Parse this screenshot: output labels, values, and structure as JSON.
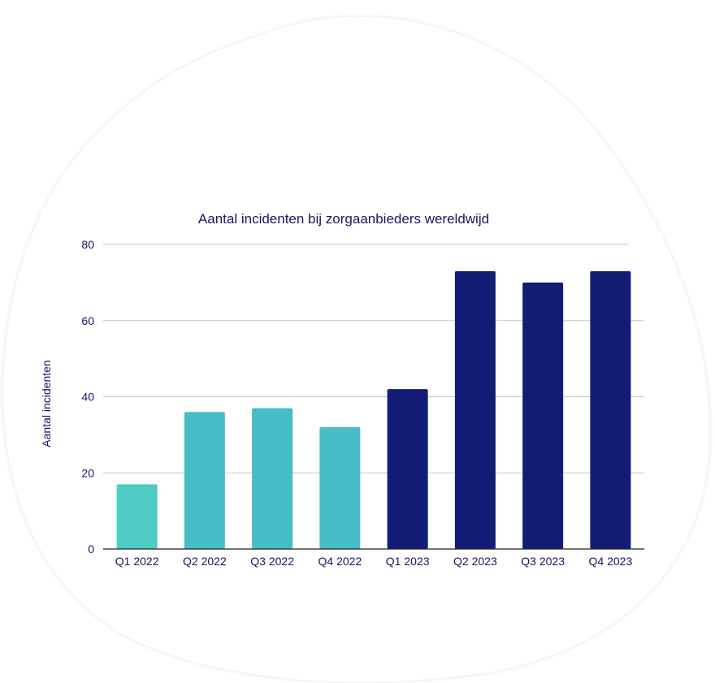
{
  "chart_data": {
    "type": "bar",
    "title": "Aantal incidenten bij zorgaanbieders wereldwijd",
    "ylabel": "Aantal incidenten",
    "xlabel": "",
    "categories": [
      "Q1 2022",
      "Q2 2022",
      "Q3 2022",
      "Q4 2022",
      "Q1 2023",
      "Q2 2023",
      "Q3 2023",
      "Q4 2023"
    ],
    "values": [
      17,
      36,
      37,
      32,
      42,
      73,
      70,
      73
    ],
    "bar_colors": [
      "#4ecdc4",
      "#47bdc6",
      "#47bdc6",
      "#47bdc6",
      "#131c75",
      "#131c75",
      "#131c75",
      "#131c75"
    ],
    "ylim": [
      0,
      80
    ],
    "yticks": [
      0,
      20,
      40,
      60,
      80
    ],
    "grid": true,
    "legend": "none",
    "colors": {
      "text": "#1a1464",
      "grid": "#c8c8c8",
      "axis": "#222222",
      "background_shape": "#ffffff"
    }
  }
}
